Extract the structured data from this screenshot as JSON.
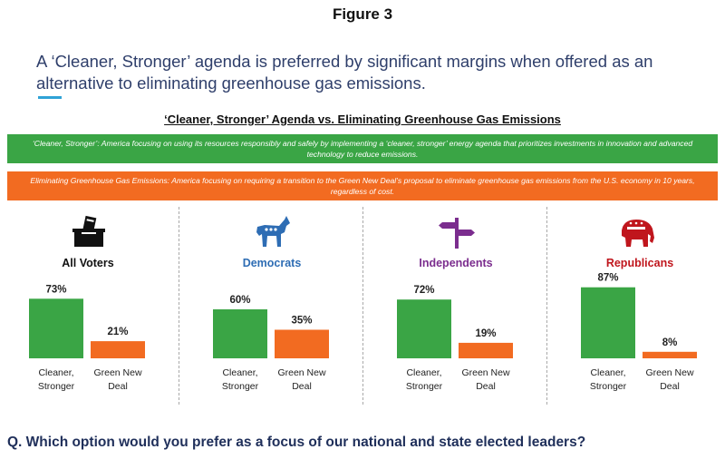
{
  "figure_label": "Figure 3",
  "headline": "A ‘Cleaner, Stronger’ agenda is preferred by significant margins when offered as an alternative to eliminating greenhouse gas emissions.",
  "colors": {
    "green": "#3aa545",
    "orange": "#f26b21",
    "democrats": "#2e6db4",
    "independents": "#7b2d8e",
    "republicans": "#c0161d"
  },
  "definitions": {
    "cleaner_stronger": "‘Cleaner, Stronger’: America focusing on using its resources responsibly and safely by implementing a ‘cleaner, stronger’ energy agenda that prioritizes investments in innovation and advanced technology to reduce emissions.",
    "eliminating": "Eliminating Greenhouse Gas Emissions: America focusing on requiring a transition to the Green New Deal’s proposal to eliminate greenhouse gas emissions from the U.S. economy in 10 years, regardless of cost."
  },
  "chart_data": {
    "type": "bar",
    "title": "‘Cleaner, Stronger’ Agenda vs. Eliminating Greenhouse Gas Emissions",
    "categories": [
      "Cleaner, Stronger",
      "Green New Deal"
    ],
    "category_lines": [
      [
        "Cleaner,",
        "Stronger"
      ],
      [
        "Green New",
        "Deal"
      ]
    ],
    "ylim": [
      0,
      100
    ],
    "groups": [
      {
        "name": "All Voters",
        "icon": "ballot-box-icon",
        "values": [
          73,
          21
        ],
        "labels": [
          "73%",
          "21%"
        ]
      },
      {
        "name": "Democrats",
        "icon": "donkey-icon",
        "values": [
          60,
          35
        ],
        "labels": [
          "60%",
          "35%"
        ]
      },
      {
        "name": "Independents",
        "icon": "signpost-icon",
        "values": [
          72,
          19
        ],
        "labels": [
          "72%",
          "19%"
        ]
      },
      {
        "name": "Republicans",
        "icon": "elephant-icon",
        "values": [
          87,
          8
        ],
        "labels": [
          "87%",
          "8%"
        ]
      }
    ]
  },
  "question": "Q. Which option would you prefer as a focus of our national and state elected leaders?"
}
